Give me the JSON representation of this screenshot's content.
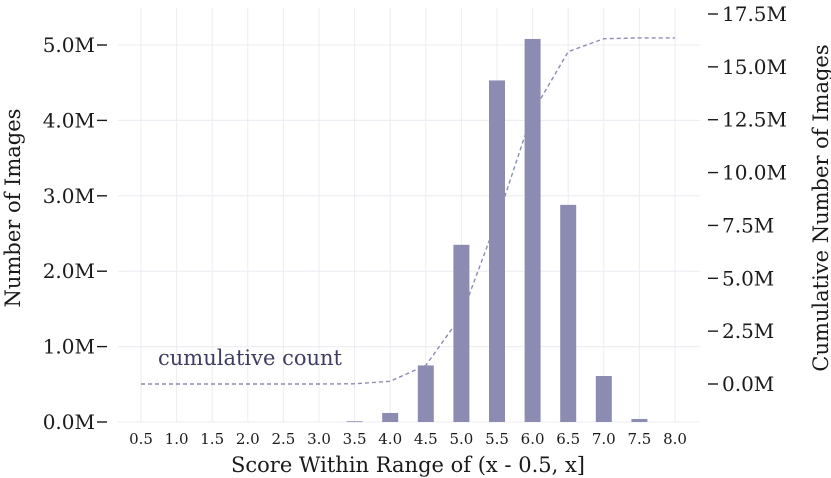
{
  "chart_data": {
    "type": "bar",
    "xlabel": "Score Within Range of (x - 0.5, x]",
    "ylabel": "Number of Images",
    "ylabel_right": "Cumulative Number of Images",
    "categories": [
      "0.5",
      "1.0",
      "1.5",
      "2.0",
      "2.5",
      "3.0",
      "3.5",
      "4.0",
      "4.5",
      "5.0",
      "5.5",
      "6.0",
      "6.5",
      "7.0",
      "7.5",
      "8.0"
    ],
    "series": [
      {
        "type": "bar",
        "axis": "left",
        "color": "#8c8cb2",
        "values": [
          0,
          0,
          0,
          0,
          0,
          0,
          0.01,
          0.12,
          0.75,
          2.35,
          4.53,
          5.08,
          2.88,
          0.61,
          0.04,
          0
        ]
      },
      {
        "name": "cumulative count",
        "type": "line",
        "style": "dashed",
        "axis": "right",
        "color": "#8c8cb2",
        "values": [
          0,
          0,
          0,
          0,
          0,
          0,
          0.01,
          0.13,
          0.88,
          3.23,
          7.76,
          12.84,
          15.72,
          16.33,
          16.37,
          16.37
        ]
      }
    ],
    "ylim": [
      0,
      5.0
    ],
    "ylim_right": [
      0,
      17.5
    ],
    "yticks": [
      {
        "value": 0,
        "label": "0.0M"
      },
      {
        "value": 1,
        "label": "1.0M"
      },
      {
        "value": 2,
        "label": "2.0M"
      },
      {
        "value": 3,
        "label": "3.0M"
      },
      {
        "value": 4,
        "label": "4.0M"
      },
      {
        "value": 5,
        "label": "5.0M"
      }
    ],
    "yticks_right": [
      {
        "value": 0,
        "label": "0.0M"
      },
      {
        "value": 2.5,
        "label": "2.5M"
      },
      {
        "value": 5,
        "label": "5.0M"
      },
      {
        "value": 7.5,
        "label": "7.5M"
      },
      {
        "value": 10,
        "label": "10.0M"
      },
      {
        "value": 12.5,
        "label": "12.5M"
      },
      {
        "value": 15,
        "label": "15.0M"
      },
      {
        "value": 17.5,
        "label": "17.5M"
      }
    ],
    "annotation": "cumulative count",
    "grid": true
  }
}
